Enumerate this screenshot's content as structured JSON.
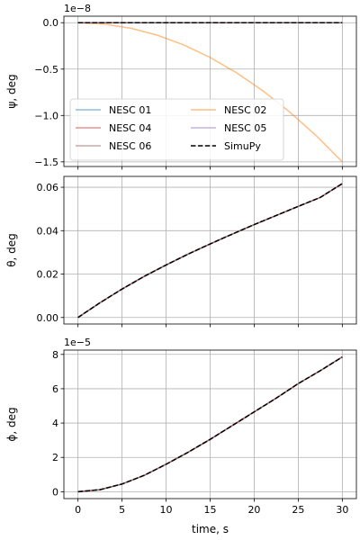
{
  "chart_data": [
    {
      "type": "line",
      "ylabel": "ψ, deg",
      "offset_text": "1e−8",
      "ylim": [
        -1.55,
        0.07
      ],
      "yticks": [
        0.0,
        -0.5,
        -1.0,
        -1.5
      ],
      "ytick_labels": [
        "0.0",
        "−0.5",
        "−1.0",
        "−1.5"
      ],
      "grid": true,
      "legend": {
        "placement": "lower-left",
        "columns": 2,
        "entries": [
          "NESC 01",
          "NESC 04",
          "NESC 02",
          "NESC 05",
          "NESC 06",
          "SimuPy"
        ]
      },
      "series": [
        {
          "name": "NESC 01",
          "color": "#1f77b4",
          "dash": false,
          "x": [
            0,
            30
          ],
          "y": [
            0,
            0
          ]
        },
        {
          "name": "NESC 02",
          "color": "#ff7f0e",
          "dash": false,
          "x": [
            0,
            3,
            6,
            9,
            12,
            15,
            18,
            21,
            24,
            27,
            30
          ],
          "y": [
            0,
            -0.015,
            -0.06,
            -0.135,
            -0.24,
            -0.375,
            -0.54,
            -0.735,
            -0.96,
            -1.215,
            -1.5
          ]
        },
        {
          "name": "NESC 04",
          "color": "#d62728",
          "dash": false,
          "x": [
            0,
            30
          ],
          "y": [
            0,
            0
          ]
        },
        {
          "name": "NESC 05",
          "color": "#9467bd",
          "dash": false,
          "x": [
            0,
            30
          ],
          "y": [
            0,
            0
          ]
        },
        {
          "name": "NESC 06",
          "color": "#8c564b",
          "dash": false,
          "x": [
            0,
            30
          ],
          "y": [
            0,
            0
          ]
        },
        {
          "name": "SimuPy",
          "color": "#000000",
          "dash": true,
          "x": [
            0,
            30
          ],
          "y": [
            0,
            0
          ]
        }
      ]
    },
    {
      "type": "line",
      "ylabel": "θ, deg",
      "ylim": [
        -0.003,
        0.065
      ],
      "yticks": [
        0.0,
        0.02,
        0.04,
        0.06
      ],
      "ytick_labels": [
        "0.00",
        "0.02",
        "0.04",
        "0.06"
      ],
      "grid": true,
      "series": [
        {
          "name": "NESC 01",
          "color": "#1f77b4",
          "dash": false,
          "x": [
            0,
            2.5,
            5,
            7.5,
            10,
            12.5,
            15,
            17.5,
            20,
            22.5,
            25,
            27.5,
            30
          ],
          "y": [
            0,
            0.0068,
            0.0131,
            0.0189,
            0.0242,
            0.0292,
            0.0339,
            0.0384,
            0.0428,
            0.047,
            0.0512,
            0.0553,
            0.0617
          ]
        },
        {
          "name": "NESC 04",
          "color": "#d62728",
          "dash": false,
          "x": [
            0,
            2.5,
            5,
            7.5,
            10,
            12.5,
            15,
            17.5,
            20,
            22.5,
            25,
            27.5,
            30
          ],
          "y": [
            0,
            0.0068,
            0.0131,
            0.0189,
            0.0242,
            0.0292,
            0.0339,
            0.0384,
            0.0428,
            0.047,
            0.0512,
            0.0553,
            0.0617
          ]
        },
        {
          "name": "NESC 06",
          "color": "#8c564b",
          "dash": false,
          "x": [
            0,
            2.5,
            5,
            7.5,
            10,
            12.5,
            15,
            17.5,
            20,
            22.5,
            25,
            27.5,
            30
          ],
          "y": [
            0,
            0.0068,
            0.0131,
            0.0189,
            0.0242,
            0.0292,
            0.0339,
            0.0384,
            0.0428,
            0.047,
            0.0512,
            0.0553,
            0.0617
          ]
        },
        {
          "name": "SimuPy",
          "color": "#000000",
          "dash": true,
          "x": [
            0,
            2.5,
            5,
            7.5,
            10,
            12.5,
            15,
            17.5,
            20,
            22.5,
            25,
            27.5,
            30
          ],
          "y": [
            0,
            0.0068,
            0.0131,
            0.0189,
            0.0242,
            0.0292,
            0.0339,
            0.0384,
            0.0428,
            0.047,
            0.0512,
            0.0553,
            0.0617
          ]
        }
      ]
    },
    {
      "type": "line",
      "ylabel": "ϕ, deg",
      "xlabel": "time, s",
      "offset_text": "1e−5",
      "ylim": [
        -0.4,
        8.25
      ],
      "yticks": [
        0,
        2,
        4,
        6,
        8
      ],
      "ytick_labels": [
        "0",
        "2",
        "4",
        "6",
        "8"
      ],
      "xlim": [
        -1.6,
        31.6
      ],
      "xticks": [
        0,
        5,
        10,
        15,
        20,
        25,
        30
      ],
      "xtick_labels": [
        "0",
        "5",
        "10",
        "15",
        "20",
        "25",
        "30"
      ],
      "grid": true,
      "series": [
        {
          "name": "NESC 01",
          "color": "#1f77b4",
          "dash": false,
          "x": [
            0,
            2.5,
            5,
            7.5,
            10,
            12.5,
            15,
            17.5,
            20,
            22.5,
            25,
            27.5,
            30
          ],
          "y": [
            0,
            0.12,
            0.45,
            0.95,
            1.6,
            2.3,
            3.05,
            3.85,
            4.65,
            5.45,
            6.3,
            7.05,
            7.85
          ]
        },
        {
          "name": "NESC 04",
          "color": "#d62728",
          "dash": false,
          "x": [
            0,
            2.5,
            5,
            7.5,
            10,
            12.5,
            15,
            17.5,
            20,
            22.5,
            25,
            27.5,
            30
          ],
          "y": [
            0,
            0.12,
            0.45,
            0.95,
            1.6,
            2.3,
            3.05,
            3.85,
            4.65,
            5.45,
            6.3,
            7.05,
            7.85
          ]
        },
        {
          "name": "NESC 06",
          "color": "#8c564b",
          "dash": false,
          "x": [
            0,
            2.5,
            5,
            7.5,
            10,
            12.5,
            15,
            17.5,
            20,
            22.5,
            25,
            27.5,
            30
          ],
          "y": [
            0,
            0.12,
            0.45,
            0.95,
            1.6,
            2.3,
            3.05,
            3.85,
            4.65,
            5.45,
            6.3,
            7.05,
            7.85
          ]
        },
        {
          "name": "SimuPy",
          "color": "#000000",
          "dash": true,
          "x": [
            0,
            2.5,
            5,
            7.5,
            10,
            12.5,
            15,
            17.5,
            20,
            22.5,
            25,
            27.5,
            30
          ],
          "y": [
            0,
            0.12,
            0.45,
            0.95,
            1.6,
            2.3,
            3.05,
            3.85,
            4.65,
            5.45,
            6.3,
            7.05,
            7.85
          ]
        }
      ]
    }
  ]
}
